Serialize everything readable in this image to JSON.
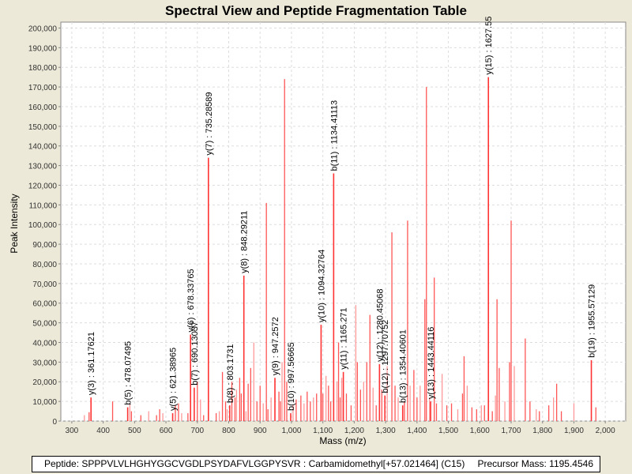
{
  "chart_data": {
    "type": "bar",
    "title": "Spectral View and Peptide Fragmentation Table",
    "xlabel": "Mass (m/z)",
    "ylabel": "Peak Intensity",
    "xlim": [
      265,
      2065
    ],
    "ylim": [
      0,
      203000
    ],
    "xticks": [
      300,
      400,
      500,
      600,
      700,
      800,
      900,
      1000,
      1100,
      1200,
      1300,
      1400,
      1500,
      1600,
      1700,
      1800,
      1900,
      2000
    ],
    "xtick_labels": [
      "300",
      "400",
      "500",
      "600",
      "700",
      "800",
      "900",
      "1,000",
      "1,100",
      "1,200",
      "1,300",
      "1,400",
      "1,500",
      "1,600",
      "1,700",
      "1,800",
      "1,900",
      "2,000"
    ],
    "yticks": [
      0,
      10000,
      20000,
      30000,
      40000,
      50000,
      60000,
      70000,
      80000,
      90000,
      100000,
      110000,
      120000,
      130000,
      140000,
      150000,
      160000,
      170000,
      180000,
      190000,
      200000
    ],
    "ytick_labels": [
      "0",
      "10,000",
      "20,000",
      "30,000",
      "40,000",
      "50,000",
      "60,000",
      "70,000",
      "80,000",
      "90,000",
      "100,000",
      "110,000",
      "120,000",
      "130,000",
      "140,000",
      "150,000",
      "160,000",
      "170,000",
      "180,000",
      "190,000",
      "200,000"
    ],
    "grid": true,
    "colors": {
      "peak": "#ff5555",
      "peak_light": "#ff9999",
      "annotated": "#ff3333"
    },
    "peaks": [
      [
        340,
        3000
      ],
      [
        355,
        4500
      ],
      [
        430,
        10000
      ],
      [
        485,
        9000
      ],
      [
        490,
        5000
      ],
      [
        520,
        3000
      ],
      [
        545,
        5000
      ],
      [
        570,
        3000
      ],
      [
        580,
        6000
      ],
      [
        590,
        4000
      ],
      [
        630,
        8000
      ],
      [
        640,
        9000
      ],
      [
        650,
        4000
      ],
      [
        670,
        4000
      ],
      [
        700,
        20000
      ],
      [
        710,
        11000
      ],
      [
        720,
        3000
      ],
      [
        760,
        4000
      ],
      [
        770,
        5000
      ],
      [
        780,
        25000
      ],
      [
        790,
        10000
      ],
      [
        795,
        6000
      ],
      [
        810,
        20000
      ],
      [
        820,
        12000
      ],
      [
        825,
        16000
      ],
      [
        835,
        22000
      ],
      [
        840,
        14000
      ],
      [
        855,
        5000
      ],
      [
        862,
        19000
      ],
      [
        870,
        27000
      ],
      [
        880,
        40000
      ],
      [
        890,
        10000
      ],
      [
        900,
        18000
      ],
      [
        910,
        9000
      ],
      [
        920,
        111000
      ],
      [
        925,
        6000
      ],
      [
        935,
        12000
      ],
      [
        960,
        15000
      ],
      [
        965,
        10000
      ],
      [
        970,
        30000
      ],
      [
        978,
        174000
      ],
      [
        985,
        20000
      ],
      [
        1005,
        8000
      ],
      [
        1015,
        11000
      ],
      [
        1030,
        13000
      ],
      [
        1040,
        9000
      ],
      [
        1050,
        15000
      ],
      [
        1060,
        10000
      ],
      [
        1070,
        12000
      ],
      [
        1080,
        14000
      ],
      [
        1100,
        14000
      ],
      [
        1110,
        23000
      ],
      [
        1118,
        18000
      ],
      [
        1125,
        10000
      ],
      [
        1145,
        20000
      ],
      [
        1150,
        40000
      ],
      [
        1155,
        12000
      ],
      [
        1160,
        22000
      ],
      [
        1175,
        14000
      ],
      [
        1190,
        8000
      ],
      [
        1205,
        59000
      ],
      [
        1210,
        30000
      ],
      [
        1220,
        16000
      ],
      [
        1230,
        20000
      ],
      [
        1240,
        30000
      ],
      [
        1250,
        54000
      ],
      [
        1260,
        17000
      ],
      [
        1270,
        8000
      ],
      [
        1288,
        16000
      ],
      [
        1305,
        28000
      ],
      [
        1320,
        96000
      ],
      [
        1330,
        18000
      ],
      [
        1340,
        12000
      ],
      [
        1360,
        10000
      ],
      [
        1370,
        102000
      ],
      [
        1378,
        18000
      ],
      [
        1390,
        26000
      ],
      [
        1400,
        12000
      ],
      [
        1410,
        18000
      ],
      [
        1425,
        62000
      ],
      [
        1430,
        170000
      ],
      [
        1440,
        12000
      ],
      [
        1455,
        73000
      ],
      [
        1462,
        9000
      ],
      [
        1480,
        24000
      ],
      [
        1495,
        8000
      ],
      [
        1510,
        9000
      ],
      [
        1530,
        6000
      ],
      [
        1545,
        14000
      ],
      [
        1550,
        33000
      ],
      [
        1560,
        18000
      ],
      [
        1575,
        7000
      ],
      [
        1590,
        6000
      ],
      [
        1605,
        8000
      ],
      [
        1615,
        8000
      ],
      [
        1640,
        5000
      ],
      [
        1650,
        13000
      ],
      [
        1655,
        62000
      ],
      [
        1662,
        27000
      ],
      [
        1680,
        10000
      ],
      [
        1695,
        30000
      ],
      [
        1700,
        102000
      ],
      [
        1710,
        28000
      ],
      [
        1745,
        42000
      ],
      [
        1760,
        10000
      ],
      [
        1780,
        6000
      ],
      [
        1790,
        5000
      ],
      [
        1820,
        8000
      ],
      [
        1835,
        12000
      ],
      [
        1845,
        19000
      ],
      [
        1860,
        5000
      ],
      [
        1900,
        9000
      ],
      [
        1970,
        7000
      ]
    ],
    "annotations": [
      {
        "label": "y(3) : 361.17621",
        "mz": 361.17621,
        "intensity": 12000
      },
      {
        "label": "b(5) : 478.07495",
        "mz": 478.07495,
        "intensity": 7000
      },
      {
        "label": "y(5) : 621.38965",
        "mz": 621.38965,
        "intensity": 4000
      },
      {
        "label": "y(6) : 678.33765",
        "mz": 678.33765,
        "intensity": 44000
      },
      {
        "label": "b(7) : 690.13037",
        "mz": 690.13037,
        "intensity": 17000
      },
      {
        "label": "y(7) : 735.28589",
        "mz": 735.28589,
        "intensity": 134000
      },
      {
        "label": "b(8) : 803.1731",
        "mz": 803.1731,
        "intensity": 8000
      },
      {
        "label": "y(8) : 848.29211",
        "mz": 848.29211,
        "intensity": 74000
      },
      {
        "label": "y(9) : 947.2572",
        "mz": 947.2572,
        "intensity": 22000
      },
      {
        "label": "b(10) : 997.56665",
        "mz": 997.56665,
        "intensity": 4000
      },
      {
        "label": "y(10) : 1094.32764",
        "mz": 1094.32764,
        "intensity": 49000
      },
      {
        "label": "b(11) : 1134.41113",
        "mz": 1134.41113,
        "intensity": 126000
      },
      {
        "label": "y(11) : 1165.271",
        "mz": 1165.271,
        "intensity": 25000
      },
      {
        "label": "y(12) : 1280.45068",
        "mz": 1280.45068,
        "intensity": 29000
      },
      {
        "label": "b(12) : 1297.70752",
        "mz": 1297.70752,
        "intensity": 13000
      },
      {
        "label": "b(13) : 1354.40601",
        "mz": 1354.40601,
        "intensity": 8000
      },
      {
        "label": "y(13) : 1443.44116",
        "mz": 1443.44116,
        "intensity": 10000
      },
      {
        "label": "y(15) : 1627.55",
        "mz": 1627.55,
        "intensity": 175000
      },
      {
        "label": "b(19) : 1955.57129",
        "mz": 1955.57129,
        "intensity": 31000
      }
    ]
  },
  "footer": {
    "peptide": "Peptide: SPPPVLVLHGHYGGCVGDLPSYDAFVLGGPYSVR : Carbamidomethyl[+57.021464] (C15)",
    "precursor": "Precursor Mass: 1195.4546"
  }
}
